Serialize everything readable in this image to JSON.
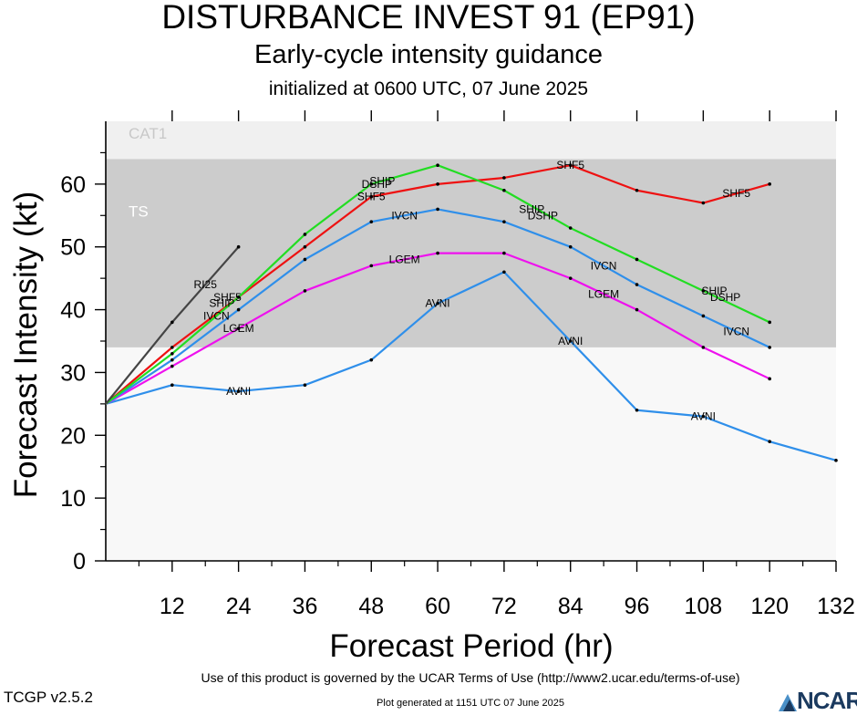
{
  "header": {
    "title": "DISTURBANCE INVEST 91 (EP91)",
    "subtitle": "Early-cycle intensity guidance",
    "init_line": "initialized at 0600 UTC, 07 June 2025"
  },
  "footer": {
    "terms": "Use of this product is governed by the UCAR Terms of Use (http://www2.ucar.edu/terms-of-use)",
    "version": "TCGP v2.5.2",
    "generated": "Plot generated at 1151 UTC   07 June 2025",
    "logo": "NCAR"
  },
  "chart_data": {
    "type": "line",
    "xlabel": "Forecast Period (hr)",
    "ylabel": "Forecast Intensity (kt)",
    "xlim": [
      0,
      132
    ],
    "ylim": [
      0,
      70
    ],
    "xticks": [
      12,
      24,
      36,
      48,
      60,
      72,
      84,
      96,
      108,
      120,
      132
    ],
    "yticks": [
      0,
      10,
      20,
      30,
      40,
      50,
      60
    ],
    "grid": false,
    "bands": [
      {
        "label": "TS",
        "from": 34,
        "to": 64,
        "color": "#cccccc"
      },
      {
        "label": "CAT1",
        "from": 64,
        "to": 70,
        "color": "#f0f0f0"
      }
    ],
    "background_color": "#f8f8f8",
    "series": [
      {
        "name": "AVNI",
        "color": "#2f8fea",
        "x": [
          0,
          12,
          24,
          36,
          48,
          60,
          72,
          84,
          96,
          108,
          120,
          132
        ],
        "y": [
          25,
          28,
          27,
          28,
          32,
          41,
          46,
          35,
          24,
          23,
          19,
          16
        ]
      },
      {
        "name": "LGEM",
        "color": "#ee11ee",
        "x": [
          0,
          12,
          24,
          36,
          48,
          60,
          72,
          84,
          96,
          108,
          120
        ],
        "y": [
          25,
          31,
          37,
          43,
          47,
          49,
          49,
          45,
          40,
          34,
          29
        ]
      },
      {
        "name": "IVCN",
        "color": "#2f8fea",
        "x": [
          0,
          12,
          24,
          36,
          48,
          60,
          72,
          84,
          96,
          108,
          120
        ],
        "y": [
          25,
          32,
          40,
          48,
          54,
          56,
          54,
          50,
          44,
          39,
          34
        ]
      },
      {
        "name": "SHF5",
        "color": "#ee1111",
        "x": [
          0,
          12,
          24,
          36,
          48,
          60,
          72,
          84,
          96,
          108,
          120
        ],
        "y": [
          25,
          34,
          42,
          50,
          58,
          60,
          61,
          63,
          59,
          57,
          60
        ]
      },
      {
        "name": "DSHP",
        "color": "#22dd22",
        "x": [
          0,
          12,
          24,
          36,
          48,
          60,
          72,
          84,
          96,
          108,
          120
        ],
        "y": [
          25,
          33,
          42,
          52,
          60,
          63,
          59,
          53,
          48,
          43,
          38
        ]
      },
      {
        "name": "RI25",
        "color": "#444444",
        "x": [
          0,
          12,
          24
        ],
        "y": [
          25,
          38,
          50
        ]
      }
    ],
    "line_labels": [
      {
        "series": "AVNI",
        "text": "AVNI",
        "x": 24,
        "y": 27
      },
      {
        "series": "AVNI",
        "text": "AVNI",
        "x": 60,
        "y": 41
      },
      {
        "series": "AVNI",
        "text": "AVNI",
        "x": 84,
        "y": 35
      },
      {
        "series": "AVNI",
        "text": "AVNI",
        "x": 108,
        "y": 23
      },
      {
        "series": "LGEM",
        "text": "LGEM",
        "x": 24,
        "y": 37
      },
      {
        "series": "LGEM",
        "text": "LGEM",
        "x": 54,
        "y": 48
      },
      {
        "series": "LGEM",
        "text": "LGEM",
        "x": 90,
        "y": 42.5
      },
      {
        "series": "IVCN",
        "text": "IVCN",
        "x": 20,
        "y": 39
      },
      {
        "series": "IVCN",
        "text": "IVCN",
        "x": 54,
        "y": 55
      },
      {
        "series": "IVCN",
        "text": "IVCN",
        "x": 90,
        "y": 47
      },
      {
        "series": "IVCN",
        "text": "IVCN",
        "x": 114,
        "y": 36.5
      },
      {
        "series": "SHF5",
        "text": "SHF5",
        "x": 48,
        "y": 58
      },
      {
        "series": "SHF5",
        "text": "SHF5",
        "x": 84,
        "y": 63
      },
      {
        "series": "SHF5",
        "text": "SHF5",
        "x": 114,
        "y": 58.5
      },
      {
        "series": "SHF5",
        "text": "SHF5",
        "x": 22,
        "y": 42
      },
      {
        "series": "DSHP",
        "text": "DSHP",
        "x": 49,
        "y": 60
      },
      {
        "series": "DSHP",
        "text": "DSHP",
        "x": 79,
        "y": 55
      },
      {
        "series": "DSHP",
        "text": "DSHP",
        "x": 112,
        "y": 42
      },
      {
        "series": "SHIP",
        "text": "SHIP",
        "x": 50,
        "y": 60.5
      },
      {
        "series": "SHIP",
        "text": "SHIP",
        "x": 77,
        "y": 56
      },
      {
        "series": "SHIP",
        "text": "SHIP",
        "x": 110,
        "y": 43
      },
      {
        "series": "SHIP",
        "text": "SHIP",
        "x": 21,
        "y": 41
      },
      {
        "series": "RI25",
        "text": "RI25",
        "x": 18,
        "y": 44
      }
    ]
  }
}
